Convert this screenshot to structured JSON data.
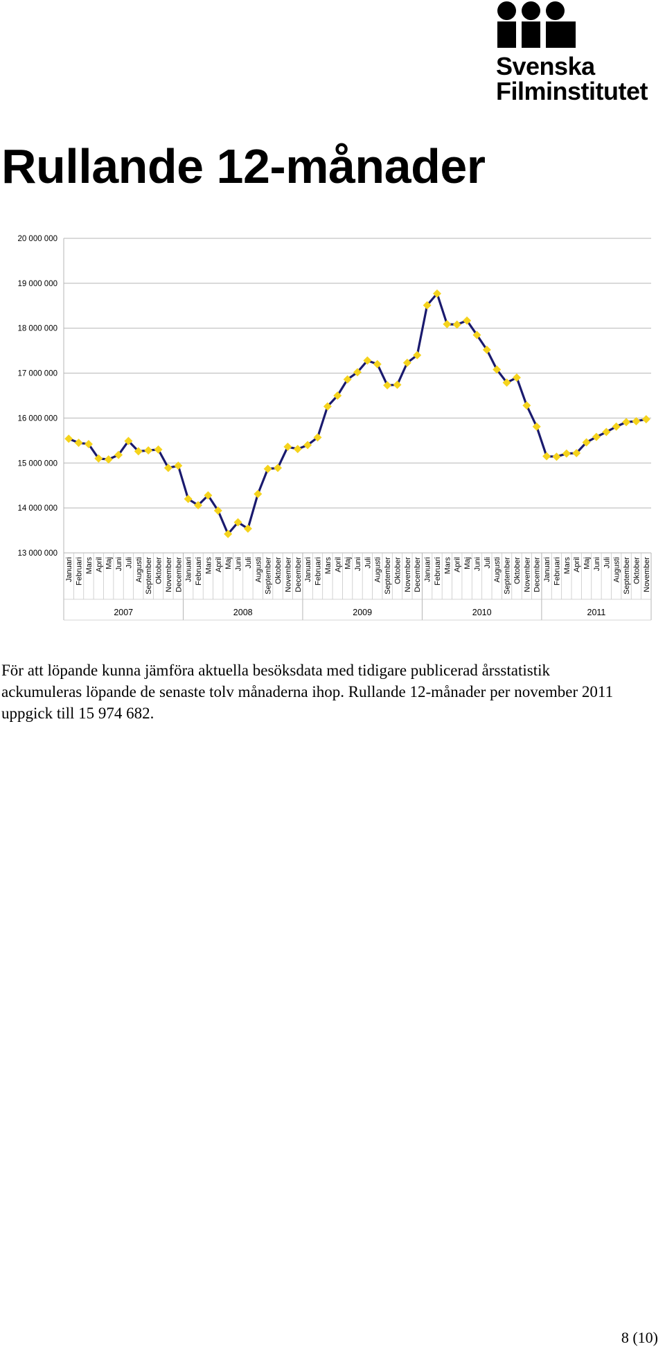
{
  "logo": {
    "line1": "Svenska",
    "line2": "Filminstitutet"
  },
  "title": "Rullande 12-månader",
  "chart_data": {
    "type": "line",
    "title": "",
    "xlabel": "",
    "ylabel": "",
    "ylim": [
      13000000,
      20000000
    ],
    "yticks": [
      13000000,
      14000000,
      15000000,
      16000000,
      17000000,
      18000000,
      19000000,
      20000000
    ],
    "ytick_labels": [
      "13 000 000",
      "14 000 000",
      "15 000 000",
      "16 000 000",
      "17 000 000",
      "18 000 000",
      "19 000 000",
      "20 000 000"
    ],
    "grid": true,
    "legend": "none",
    "line_color": "#1a1a6e",
    "marker_color": "#f5d31c",
    "months": [
      "Januari",
      "Februari",
      "Mars",
      "April",
      "Maj",
      "Juni",
      "Juli",
      "Augusti",
      "September",
      "Oktober",
      "November",
      "December"
    ],
    "years": [
      {
        "label": "2007",
        "count": 12
      },
      {
        "label": "2008",
        "count": 12
      },
      {
        "label": "2009",
        "count": 12
      },
      {
        "label": "2010",
        "count": 12
      },
      {
        "label": "2011",
        "count": 11
      }
    ],
    "values": [
      15540000,
      15450000,
      15420000,
      15100000,
      15080000,
      15180000,
      15490000,
      15260000,
      15280000,
      15300000,
      14890000,
      14940000,
      14200000,
      14060000,
      14280000,
      13940000,
      13420000,
      13680000,
      13540000,
      14310000,
      14870000,
      14890000,
      15360000,
      15310000,
      15400000,
      15570000,
      16260000,
      16500000,
      16860000,
      17020000,
      17280000,
      17200000,
      16730000,
      16740000,
      17230000,
      17400000,
      18510000,
      18770000,
      18090000,
      18080000,
      18170000,
      17850000,
      17520000,
      17080000,
      16790000,
      16900000,
      16280000,
      15810000,
      15150000,
      15140000,
      15210000,
      15220000,
      15460000,
      15580000,
      15690000,
      15810000,
      15910000,
      15930000,
      15974682
    ]
  },
  "paragraph": "För att löpande kunna jämföra aktuella besöksdata med tidigare publicerad årsstatistik ackumuleras löpande de senaste tolv månaderna ihop. Rullande 12-månader per november 2011 uppgick till 15 974 682.",
  "page_number": "8 (10)"
}
